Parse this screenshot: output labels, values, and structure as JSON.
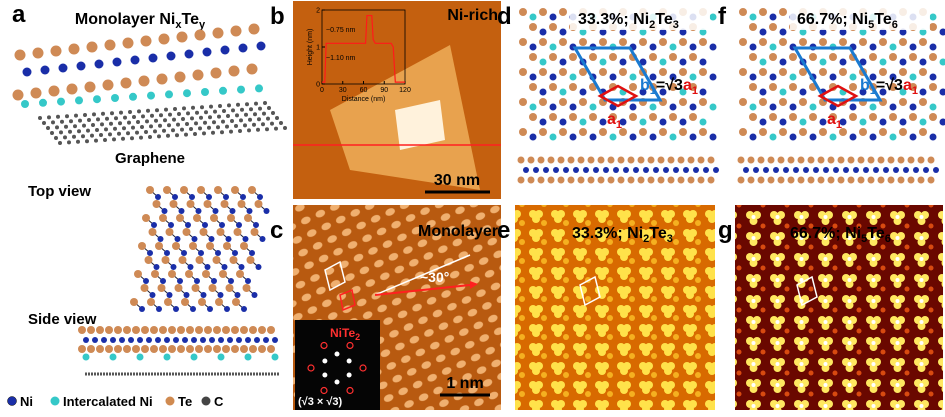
{
  "panels": {
    "a": {
      "label": "a",
      "title": [
        "Monolayer Ni",
        "x",
        "Te",
        "y"
      ],
      "graphene": "Graphene",
      "top_view": "Top view",
      "side_view": "Side view",
      "legend": [
        "Ni",
        "Intercalated Ni",
        "Te",
        "C"
      ]
    },
    "b": {
      "label": "b",
      "tag": "Ni-rich",
      "scale_bar": "30 nm",
      "inset": {
        "xlabel": "Distance (nm)",
        "ylabel": "Height (nm)",
        "xlim": [
          0,
          120
        ],
        "ylim": [
          0,
          2
        ],
        "xticks": [
          0,
          30,
          60,
          90,
          120
        ],
        "yticks": [
          0,
          1,
          2
        ],
        "annotations": [
          "~0.75 nm",
          "~1.10 nm"
        ],
        "profile": {
          "x": [
            0,
            4,
            6,
            60,
            63,
            65,
            72,
            74,
            77,
            100,
            103,
            106,
            120
          ],
          "values": [
            0.05,
            0.05,
            1.1,
            1.1,
            1.1,
            1.85,
            1.85,
            1.2,
            1.1,
            1.1,
            1.0,
            0.05,
            0.05
          ]
        }
      }
    },
    "c": {
      "label": "c",
      "tag": "Monolayer",
      "angle": "~30°",
      "fft_label": [
        "NiTe",
        "2"
      ],
      "fft_caption": "(√3 × √3)",
      "scale_bar": "1 nm"
    },
    "d": {
      "label": "d",
      "title": [
        "33.3%; Ni",
        "2",
        "Te",
        "3"
      ],
      "b_vec": [
        "b",
        "1",
        "=√3",
        "a",
        "1"
      ],
      "a_vec": [
        "a",
        "1"
      ]
    },
    "e": {
      "label": "e",
      "title": [
        "33.3%; Ni",
        "2",
        "Te",
        "3"
      ]
    },
    "f": {
      "label": "f",
      "title": [
        "66.7%; Ni",
        "5",
        "Te",
        "6"
      ],
      "b_vec": [
        "b",
        "1",
        "=√3",
        "a",
        "1"
      ],
      "a_vec": [
        "a",
        "1"
      ]
    },
    "g": {
      "label": "g",
      "title": [
        "66.7%; Ni",
        "5",
        "Te",
        "6"
      ]
    }
  }
}
